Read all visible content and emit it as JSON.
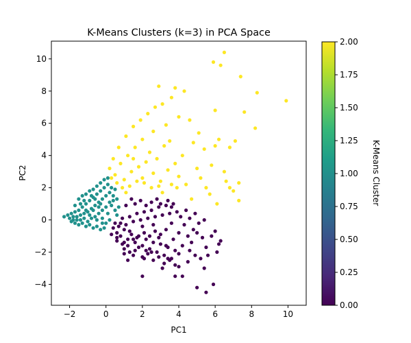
{
  "chart_data": {
    "type": "scatter",
    "title": "K-Means Clusters (k=3) in PCA Space",
    "xlabel": "PC1",
    "ylabel": "PC2",
    "xlim": [
      -3.0,
      11.0
    ],
    "ylim": [
      -5.3,
      11.1
    ],
    "xticks": [
      -2,
      0,
      2,
      4,
      6,
      8,
      10
    ],
    "xtick_labels": [
      "−2",
      "0",
      "2",
      "4",
      "6",
      "8",
      "10"
    ],
    "yticks": [
      -4,
      -2,
      0,
      2,
      4,
      6,
      8,
      10
    ],
    "ytick_labels": [
      "−4",
      "−2",
      "0",
      "2",
      "4",
      "6",
      "8",
      "10"
    ],
    "grid": false,
    "legend": "none",
    "colorbar": {
      "label": "K-Means Cluster",
      "colormap": "viridis",
      "range": [
        0.0,
        2.0
      ],
      "ticks": [
        0.0,
        0.25,
        0.5,
        0.75,
        1.0,
        1.25,
        1.5,
        1.75,
        2.0
      ],
      "tick_labels": [
        "0.00",
        "0.25",
        "0.50",
        "0.75",
        "1.00",
        "1.25",
        "1.50",
        "1.75",
        "2.00"
      ],
      "stops": [
        "#440154",
        "#482878",
        "#3e4989",
        "#31688e",
        "#26828e",
        "#1f9e89",
        "#35b779",
        "#6ece58",
        "#b5de2b",
        "#fde725"
      ]
    },
    "series": [
      {
        "cluster": 0,
        "color": "#440154",
        "points": [
          [
            0.4,
            -0.5
          ],
          [
            0.6,
            -0.8
          ],
          [
            0.8,
            -1.0
          ],
          [
            1.0,
            -0.6
          ],
          [
            1.2,
            -1.2
          ],
          [
            1.4,
            -0.9
          ],
          [
            1.6,
            -1.4
          ],
          [
            1.8,
            -1.0
          ],
          [
            2.0,
            -1.6
          ],
          [
            2.2,
            -1.2
          ],
          [
            2.4,
            -1.8
          ],
          [
            2.6,
            -1.4
          ],
          [
            2.8,
            -2.0
          ],
          [
            3.0,
            -1.5
          ],
          [
            3.2,
            -2.2
          ],
          [
            3.4,
            -1.7
          ],
          [
            3.6,
            -2.4
          ],
          [
            3.8,
            -1.9
          ],
          [
            4.0,
            -2.1
          ],
          [
            4.2,
            -1.6
          ],
          [
            0.5,
            -0.2
          ],
          [
            0.7,
            -0.4
          ],
          [
            0.9,
            0.1
          ],
          [
            1.1,
            -0.3
          ],
          [
            1.3,
            0.2
          ],
          [
            1.5,
            -0.1
          ],
          [
            1.7,
            0.4
          ],
          [
            1.9,
            0.0
          ],
          [
            2.1,
            0.5
          ],
          [
            2.3,
            0.1
          ],
          [
            2.5,
            0.6
          ],
          [
            2.7,
            0.2
          ],
          [
            2.9,
            0.8
          ],
          [
            3.1,
            0.3
          ],
          [
            3.3,
            0.9
          ],
          [
            3.5,
            0.4
          ],
          [
            3.7,
            1.0
          ],
          [
            3.9,
            0.5
          ],
          [
            4.1,
            0.2
          ],
          [
            4.3,
            -0.3
          ],
          [
            1.0,
            -1.8
          ],
          [
            1.3,
            -2.0
          ],
          [
            1.6,
            -1.9
          ],
          [
            2.0,
            -2.3
          ],
          [
            2.3,
            -2.1
          ],
          [
            2.6,
            -2.5
          ],
          [
            2.9,
            -2.3
          ],
          [
            3.2,
            -2.7
          ],
          [
            3.5,
            -2.5
          ],
          [
            3.8,
            -2.8
          ],
          [
            4.5,
            -1.0
          ],
          [
            4.7,
            -1.4
          ],
          [
            5.0,
            -0.8
          ],
          [
            5.3,
            -1.1
          ],
          [
            5.5,
            -1.7
          ],
          [
            5.2,
            -2.4
          ],
          [
            5.8,
            -1.0
          ],
          [
            6.0,
            -0.7
          ],
          [
            6.3,
            -1.3
          ],
          [
            6.2,
            -1.5
          ],
          [
            0.3,
            -0.9
          ],
          [
            0.6,
            -1.3
          ],
          [
            0.9,
            -1.5
          ],
          [
            1.2,
            -1.6
          ],
          [
            1.5,
            -1.2
          ],
          [
            1.8,
            -1.7
          ],
          [
            2.1,
            -0.8
          ],
          [
            2.4,
            -1.0
          ],
          [
            2.7,
            -0.7
          ],
          [
            3.0,
            -0.9
          ],
          [
            1.1,
            0.9
          ],
          [
            1.4,
            1.3
          ],
          [
            1.6,
            1.0
          ],
          [
            1.9,
            1.2
          ],
          [
            2.2,
            0.9
          ],
          [
            2.5,
            1.1
          ],
          [
            2.8,
            1.3
          ],
          [
            3.0,
            1.0
          ],
          [
            3.4,
            1.2
          ],
          [
            3.6,
            0.8
          ],
          [
            4.4,
            0.6
          ],
          [
            4.6,
            0.1
          ],
          [
            4.9,
            0.4
          ],
          [
            5.1,
            -0.2
          ],
          [
            5.4,
            0.0
          ],
          [
            4.8,
            -0.6
          ],
          [
            4.0,
            -0.8
          ],
          [
            3.7,
            -1.2
          ],
          [
            3.3,
            -0.6
          ],
          [
            2.9,
            -1.1
          ],
          [
            1.0,
            -2.1
          ],
          [
            1.5,
            -2.2
          ],
          [
            2.1,
            -2.4
          ],
          [
            2.5,
            -2.0
          ],
          [
            3.4,
            -2.4
          ],
          [
            4.0,
            -2.9
          ],
          [
            4.5,
            -2.6
          ],
          [
            4.9,
            -2.2
          ],
          [
            5.6,
            -2.2
          ],
          [
            6.1,
            -2.0
          ],
          [
            2.0,
            -3.5
          ],
          [
            3.8,
            -3.5
          ],
          [
            4.2,
            -3.5
          ],
          [
            5.4,
            -3.0
          ],
          [
            5.0,
            -4.2
          ],
          [
            5.5,
            -4.5
          ],
          [
            5.9,
            -4.0
          ],
          [
            1.2,
            -2.5
          ],
          [
            4.6,
            -1.9
          ],
          [
            3.1,
            -3.0
          ],
          [
            0.6,
            -1.1
          ],
          [
            0.8,
            -0.2
          ],
          [
            1.0,
            -1.4
          ],
          [
            1.3,
            -0.7
          ],
          [
            1.7,
            -1.1
          ],
          [
            2.0,
            -0.4
          ],
          [
            2.2,
            -1.9
          ],
          [
            2.6,
            -0.3
          ],
          [
            3.3,
            -1.6
          ],
          [
            3.6,
            -0.2
          ]
        ]
      },
      {
        "cluster": 1,
        "color": "#21918c",
        "points": [
          [
            -2.3,
            0.2
          ],
          [
            -2.1,
            0.3
          ],
          [
            -2.0,
            0.1
          ],
          [
            -1.9,
            0.4
          ],
          [
            -1.8,
            0.2
          ],
          [
            -1.7,
            0.5
          ],
          [
            -1.6,
            0.0
          ],
          [
            -1.5,
            0.6
          ],
          [
            -1.4,
            0.3
          ],
          [
            -1.3,
            0.8
          ],
          [
            -1.2,
            0.4
          ],
          [
            -1.1,
            1.0
          ],
          [
            -1.0,
            0.5
          ],
          [
            -0.9,
            1.2
          ],
          [
            -0.8,
            0.7
          ],
          [
            -0.7,
            1.4
          ],
          [
            -0.6,
            0.9
          ],
          [
            -0.5,
            1.6
          ],
          [
            -0.4,
            1.1
          ],
          [
            -0.3,
            1.8
          ],
          [
            -0.2,
            1.3
          ],
          [
            -0.1,
            2.0
          ],
          [
            0.0,
            1.5
          ],
          [
            0.1,
            2.2
          ],
          [
            0.2,
            1.7
          ],
          [
            0.3,
            0.9
          ],
          [
            0.4,
            1.2
          ],
          [
            0.5,
            0.6
          ],
          [
            0.6,
            0.3
          ],
          [
            0.7,
            0.8
          ],
          [
            -1.9,
            -0.1
          ],
          [
            -1.7,
            -0.2
          ],
          [
            -1.5,
            -0.3
          ],
          [
            -1.3,
            -0.2
          ],
          [
            -1.1,
            -0.4
          ],
          [
            -0.9,
            -0.3
          ],
          [
            -0.7,
            -0.5
          ],
          [
            -0.5,
            -0.4
          ],
          [
            -0.3,
            -0.6
          ],
          [
            -0.1,
            -0.5
          ],
          [
            0.0,
            -0.2
          ],
          [
            -0.2,
            0.1
          ],
          [
            -0.4,
            0.4
          ],
          [
            -0.6,
            0.2
          ],
          [
            -0.8,
            0.1
          ],
          [
            -1.0,
            -0.1
          ],
          [
            -1.2,
            0.1
          ],
          [
            -1.4,
            0.0
          ],
          [
            -1.6,
            0.2
          ],
          [
            -1.8,
            0.0
          ],
          [
            -1.5,
            1.3
          ],
          [
            -1.3,
            1.5
          ],
          [
            -1.1,
            1.6
          ],
          [
            -0.9,
            1.8
          ],
          [
            -0.7,
            1.9
          ],
          [
            -0.5,
            2.1
          ],
          [
            -0.3,
            2.3
          ],
          [
            -0.1,
            2.5
          ],
          [
            0.1,
            2.6
          ],
          [
            0.3,
            2.0
          ],
          [
            -1.7,
            0.9
          ],
          [
            -1.4,
            1.0
          ],
          [
            -1.2,
            1.2
          ],
          [
            -0.8,
            1.5
          ],
          [
            -0.6,
            1.3
          ],
          [
            -0.3,
            1.0
          ],
          [
            0.2,
            1.1
          ],
          [
            0.4,
            1.5
          ],
          [
            0.5,
            1.9
          ],
          [
            0.6,
            1.3
          ],
          [
            -0.2,
            0.6
          ],
          [
            -0.4,
            0.8
          ],
          [
            0.1,
            0.4
          ],
          [
            0.2,
            0.0
          ],
          [
            -0.9,
            0.3
          ],
          [
            -1.1,
            0.6
          ],
          [
            -0.7,
            0.6
          ],
          [
            -0.5,
            0.0
          ],
          [
            -0.2,
            -0.2
          ],
          [
            0.0,
            0.8
          ]
        ]
      },
      {
        "cluster": 2,
        "color": "#fde725",
        "points": [
          [
            0.2,
            3.2
          ],
          [
            0.5,
            2.8
          ],
          [
            0.8,
            3.5
          ],
          [
            1.0,
            2.5
          ],
          [
            1.2,
            4.0
          ],
          [
            1.4,
            3.0
          ],
          [
            1.6,
            4.5
          ],
          [
            1.8,
            3.3
          ],
          [
            2.0,
            5.0
          ],
          [
            2.2,
            3.6
          ],
          [
            2.4,
            4.2
          ],
          [
            2.6,
            2.9
          ],
          [
            2.8,
            3.8
          ],
          [
            3.0,
            2.4
          ],
          [
            3.2,
            4.6
          ],
          [
            3.4,
            3.1
          ],
          [
            3.6,
            2.2
          ],
          [
            3.8,
            3.5
          ],
          [
            4.0,
            2.7
          ],
          [
            4.2,
            4.0
          ],
          [
            0.4,
            3.8
          ],
          [
            0.7,
            4.5
          ],
          [
            1.1,
            5.2
          ],
          [
            1.5,
            5.8
          ],
          [
            1.9,
            6.2
          ],
          [
            2.3,
            6.6
          ],
          [
            2.7,
            7.0
          ],
          [
            3.1,
            7.2
          ],
          [
            3.6,
            7.6
          ],
          [
            4.0,
            6.4
          ],
          [
            4.3,
            8.0
          ],
          [
            3.8,
            8.2
          ],
          [
            2.9,
            8.3
          ],
          [
            4.6,
            6.2
          ],
          [
            4.8,
            4.8
          ],
          [
            5.0,
            3.2
          ],
          [
            5.2,
            2.6
          ],
          [
            5.5,
            2.0
          ],
          [
            5.8,
            3.4
          ],
          [
            6.0,
            4.6
          ],
          [
            6.2,
            5.0
          ],
          [
            6.5,
            3.0
          ],
          [
            6.8,
            2.0
          ],
          [
            7.0,
            1.8
          ],
          [
            7.3,
            1.2
          ],
          [
            6.6,
            2.4
          ],
          [
            6.0,
            6.8
          ],
          [
            6.3,
            9.6
          ],
          [
            6.5,
            10.4
          ],
          [
            5.9,
            9.8
          ],
          [
            7.4,
            8.9
          ],
          [
            8.3,
            7.9
          ],
          [
            7.6,
            6.7
          ],
          [
            8.2,
            5.7
          ],
          [
            9.9,
            7.4
          ],
          [
            7.1,
            4.9
          ],
          [
            7.3,
            2.3
          ],
          [
            5.4,
            4.4
          ],
          [
            5.1,
            5.4
          ],
          [
            4.4,
            2.2
          ],
          [
            1.3,
            2.1
          ],
          [
            1.7,
            2.4
          ],
          [
            2.1,
            2.3
          ],
          [
            2.5,
            2.0
          ],
          [
            0.9,
            2.0
          ],
          [
            0.6,
            2.3
          ],
          [
            1.5,
            3.8
          ],
          [
            2.6,
            5.5
          ],
          [
            3.3,
            5.9
          ],
          [
            3.5,
            4.9
          ],
          [
            2.0,
            2.6
          ],
          [
            2.9,
            2.1
          ],
          [
            3.9,
            2.0
          ],
          [
            4.7,
            1.3
          ],
          [
            5.7,
            1.6
          ],
          [
            6.1,
            1.0
          ],
          [
            3.1,
            1.7
          ],
          [
            1.1,
            1.7
          ],
          [
            0.3,
            2.6
          ],
          [
            6.8,
            4.5
          ]
        ]
      }
    ]
  }
}
